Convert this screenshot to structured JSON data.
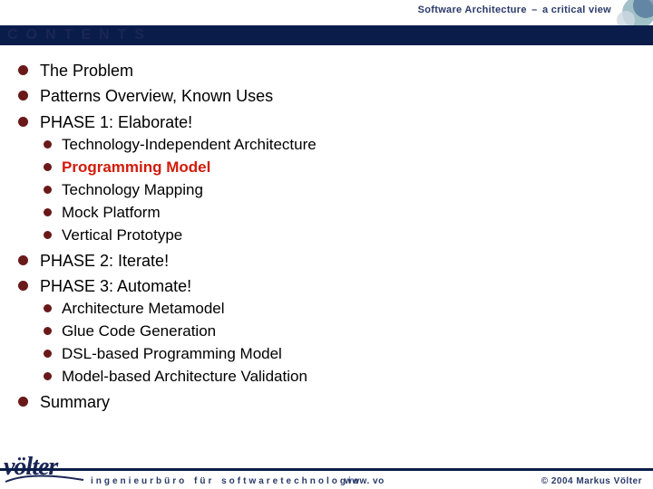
{
  "colors": {
    "navy": "#0a1d4a",
    "textNavy": "#1a2656",
    "bulletMaroon": "#6a1919",
    "highlight": "#d11b0a",
    "decoTeal": "#77a7b0",
    "decoBlue": "#3b5f8c"
  },
  "header": {
    "title_left": "Software Architecture",
    "title_right": "a critical view"
  },
  "title": "CONTENTS",
  "items": [
    {
      "label": "The Problem"
    },
    {
      "label": "Patterns Overview, Known Uses"
    },
    {
      "label": "PHASE 1: Elaborate!",
      "children": [
        {
          "label": "Technology-Independent Architecture"
        },
        {
          "label": "Programming Model",
          "highlight": true
        },
        {
          "label": "Technology Mapping"
        },
        {
          "label": "Mock Platform"
        },
        {
          "label": "Vertical Prototype"
        }
      ]
    },
    {
      "label": "PHASE 2: Iterate!"
    },
    {
      "label": "PHASE 3: Automate!",
      "children": [
        {
          "label": "Architecture Metamodel"
        },
        {
          "label": "Glue Code Generation"
        },
        {
          "label": "DSL-based Programming Model"
        },
        {
          "label": "Model-based Architecture Validation"
        }
      ]
    },
    {
      "label": "Summary"
    }
  ],
  "logo": {
    "text": "völter"
  },
  "footer": {
    "tagline": "ingenieurbüro für softwaretechnologie",
    "url": "www. vo",
    "copyright": "© 2004 Markus Völter"
  }
}
